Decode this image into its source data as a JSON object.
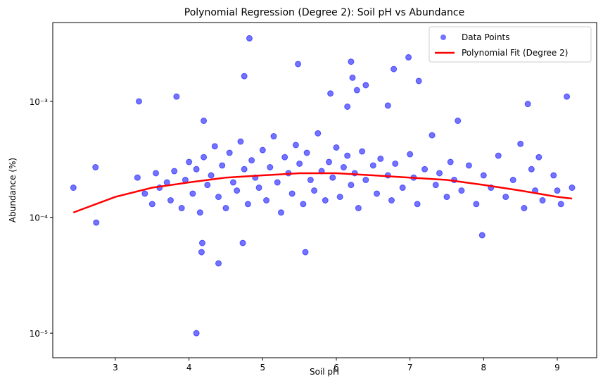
{
  "chart_data": {
    "type": "scatter",
    "title": "Polynomial Regression (Degree 2): Soil pH vs Abundance",
    "x_label": "Soil pH",
    "y_label": "Abundance (%)",
    "xlim": [
      2.15,
      9.535
    ],
    "xticks": [
      3,
      4,
      5,
      6,
      7,
      8,
      9
    ],
    "ylim": [
      6.14e-06,
      0.00479
    ],
    "y_scale": "log",
    "yticks": [
      {
        "value": 1e-05,
        "label": "10⁻⁵"
      },
      {
        "value": 0.0001,
        "label": "10⁻⁴"
      },
      {
        "value": 0.001,
        "label": "10⁻³"
      }
    ],
    "legend": "upper right",
    "series": [
      {
        "name": "Data Points",
        "type": "scatter",
        "color": "#0000ff",
        "x": [
          4.82,
          5.48,
          4.75,
          6.2,
          6.98,
          6.78,
          6.22,
          7.12,
          6.4,
          6.28,
          5.92,
          3.83,
          3.32,
          9.13,
          8.6,
          6.7,
          6.15,
          4.2,
          7.65,
          4.1,
          4.4,
          5.58,
          4.17,
          4.18,
          4.73,
          7.98,
          2.43,
          2.73,
          2.74,
          9.2,
          9.05,
          3.3,
          3.4,
          3.5,
          3.55,
          3.6,
          3.7,
          3.75,
          3.8,
          3.9,
          3.95,
          4.0,
          4.05,
          4.1,
          4.15,
          4.2,
          4.25,
          4.3,
          4.35,
          4.4,
          4.45,
          4.5,
          4.55,
          4.6,
          4.65,
          4.7,
          4.75,
          4.8,
          4.85,
          4.9,
          4.95,
          5.0,
          5.05,
          5.1,
          5.15,
          5.2,
          5.25,
          5.3,
          5.35,
          5.4,
          5.45,
          5.5,
          5.55,
          5.6,
          5.65,
          5.7,
          5.75,
          5.8,
          5.85,
          5.9,
          5.95,
          6.0,
          6.05,
          6.1,
          6.15,
          6.2,
          6.25,
          6.3,
          6.35,
          6.4,
          6.5,
          6.55,
          6.6,
          6.7,
          6.75,
          6.8,
          6.9,
          7.0,
          7.05,
          7.1,
          7.2,
          7.3,
          7.35,
          7.4,
          7.5,
          7.55,
          7.6,
          7.7,
          7.8,
          7.9,
          8.0,
          8.1,
          8.2,
          8.3,
          8.4,
          8.5,
          8.55,
          8.65,
          8.7,
          8.75,
          8.8,
          8.95,
          9.0
        ],
        "values": [
          0.0035,
          0.0021,
          0.00165,
          0.0022,
          0.0024,
          0.0019,
          0.0016,
          0.0015,
          0.00138,
          0.00125,
          0.00117,
          0.0011,
          0.001,
          0.0011,
          0.00095,
          0.00092,
          0.0009,
          0.00068,
          0.00068,
          1e-05,
          4e-05,
          5e-05,
          5e-05,
          6e-05,
          6e-05,
          7e-05,
          0.00018,
          0.00027,
          9e-05,
          0.00018,
          0.00013,
          0.00022,
          0.00016,
          0.00013,
          0.00024,
          0.00018,
          0.0002,
          0.00014,
          0.00025,
          0.00012,
          0.00021,
          0.0003,
          0.00016,
          0.00026,
          0.00011,
          0.00033,
          0.00019,
          0.00023,
          0.00041,
          0.00015,
          0.00028,
          0.00012,
          0.00036,
          0.0002,
          0.00017,
          0.00045,
          0.00026,
          0.00013,
          0.00031,
          0.00022,
          0.00018,
          0.00038,
          0.00014,
          0.00027,
          0.0005,
          0.0002,
          0.00011,
          0.00033,
          0.00024,
          0.00016,
          0.00042,
          0.00029,
          0.00013,
          0.00036,
          0.00021,
          0.00017,
          0.00053,
          0.00025,
          0.00014,
          0.0003,
          0.00022,
          0.0004,
          0.00015,
          0.00027,
          0.00034,
          0.00019,
          0.00024,
          0.00012,
          0.00037,
          0.00021,
          0.00028,
          0.00016,
          0.00032,
          0.00023,
          0.00014,
          0.00029,
          0.00018,
          0.00035,
          0.00022,
          0.00013,
          0.00026,
          0.00051,
          0.00019,
          0.00024,
          0.00015,
          0.0003,
          0.00021,
          0.00017,
          0.00028,
          0.00013,
          0.00023,
          0.00018,
          0.00034,
          0.00015,
          0.00021,
          0.00043,
          0.00012,
          0.00026,
          0.00017,
          0.00033,
          0.00014,
          0.00023,
          0.00017
        ]
      },
      {
        "name": "Polynomial Fit (Degree 2)",
        "type": "line",
        "color": "#ff0000",
        "x": [
          2.43,
          3,
          3.5,
          4,
          4.5,
          5,
          5.5,
          6,
          6.5,
          7,
          7.5,
          8,
          8.5,
          9,
          9.2
        ],
        "values": [
          0.00011,
          0.00015,
          0.00018,
          0.0002,
          0.00022,
          0.00023,
          0.00024,
          0.00024,
          0.00023,
          0.00022,
          0.00021,
          0.00019,
          0.00017,
          0.00015,
          0.000145
        ]
      }
    ]
  }
}
